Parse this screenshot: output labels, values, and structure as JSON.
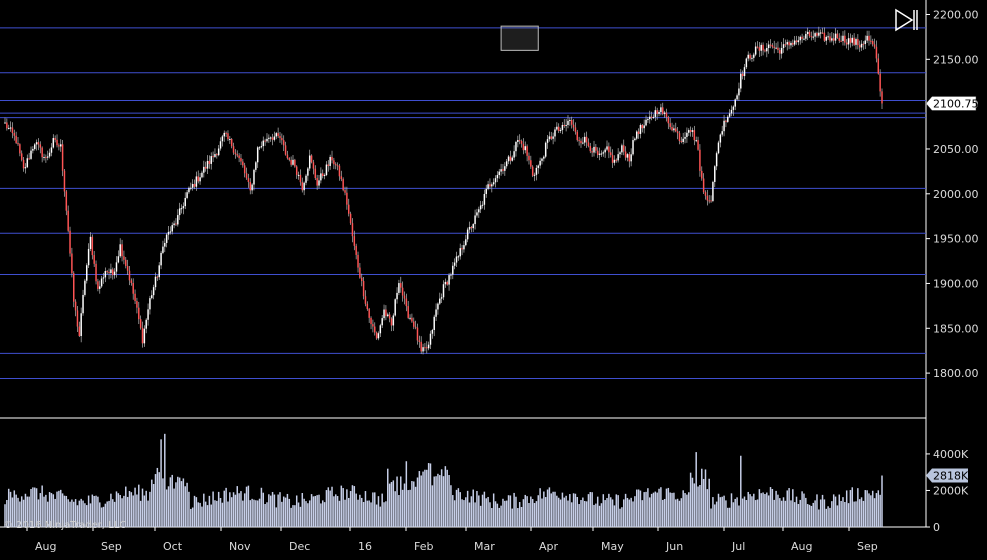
{
  "copyright": "© 2016 NinjaTrader, LLC",
  "colors": {
    "background": "#000000",
    "up_candle": "#ffffff",
    "down_candle": "#ff5555",
    "wick": "#bbbbbb",
    "level_line": "#3f4fd0",
    "volume_bar": "#c7cfe8",
    "axis": "#ffffff",
    "price_badge_bg": "#ffffff",
    "volume_badge_bg": "#b9c5dd"
  },
  "icons": {
    "jump_to_end": "play-to-end-icon"
  },
  "chart_data": [
    {
      "type": "candlestick",
      "panel": "price",
      "y_ticks": [
        "2200.00",
        "2150.00",
        "2100.00",
        "2050.00",
        "2000.00",
        "1950.00",
        "1900.00",
        "1850.00",
        "1800.00"
      ],
      "ylim": [
        1770,
        2205
      ],
      "x_ticks": [
        "Aug",
        "Sep",
        "Oct",
        "Nov",
        "Dec",
        "16",
        "Feb",
        "Mar",
        "Apr",
        "May",
        "Jun",
        "Jul",
        "Aug",
        "Sep"
      ],
      "last_price_label": "2100.75",
      "last_price": 2100.75,
      "horizontal_levels": [
        2185,
        2135,
        2104,
        2090,
        2085,
        2006,
        1956,
        1910,
        1822,
        1794
      ],
      "highlight_box": {
        "x_start_index": 267,
        "x_end_index": 287,
        "y_low": 2160,
        "y_high": 2187
      },
      "path_anchors": [
        [
          0,
          2078
        ],
        [
          6,
          2060
        ],
        [
          10,
          2026
        ],
        [
          16,
          2058
        ],
        [
          22,
          2038
        ],
        [
          26,
          2058
        ],
        [
          30,
          2052
        ],
        [
          34,
          1960
        ],
        [
          37,
          1880
        ],
        [
          40,
          1842
        ],
        [
          43,
          1905
        ],
        [
          46,
          1950
        ],
        [
          50,
          1892
        ],
        [
          54,
          1915
        ],
        [
          58,
          1910
        ],
        [
          62,
          1942
        ],
        [
          66,
          1915
        ],
        [
          70,
          1880
        ],
        [
          74,
          1838
        ],
        [
          78,
          1882
        ],
        [
          82,
          1910
        ],
        [
          86,
          1950
        ],
        [
          92,
          1968
        ],
        [
          98,
          2000
        ],
        [
          102,
          2012
        ],
        [
          108,
          2030
        ],
        [
          114,
          2048
        ],
        [
          118,
          2065
        ],
        [
          122,
          2055
        ],
        [
          128,
          2030
        ],
        [
          132,
          2002
        ],
        [
          136,
          2050
        ],
        [
          142,
          2065
        ],
        [
          148,
          2062
        ],
        [
          152,
          2040
        ],
        [
          156,
          2032
        ],
        [
          160,
          2008
        ],
        [
          164,
          2040
        ],
        [
          168,
          2012
        ],
        [
          172,
          2025
        ],
        [
          176,
          2040
        ],
        [
          180,
          2022
        ],
        [
          184,
          1990
        ],
        [
          188,
          1940
        ],
        [
          192,
          1900
        ],
        [
          196,
          1862
        ],
        [
          200,
          1838
        ],
        [
          204,
          1870
        ],
        [
          208,
          1852
        ],
        [
          212,
          1905
        ],
        [
          216,
          1870
        ],
        [
          220,
          1855
        ],
        [
          224,
          1822
        ],
        [
          228,
          1830
        ],
        [
          232,
          1870
        ],
        [
          236,
          1895
        ],
        [
          240,
          1912
        ],
        [
          244,
          1930
        ],
        [
          248,
          1952
        ],
        [
          252,
          1968
        ],
        [
          256,
          1985
        ],
        [
          260,
          2008
        ],
        [
          264,
          2020
        ],
        [
          268,
          2030
        ],
        [
          272,
          2040
        ],
        [
          276,
          2060
        ],
        [
          280,
          2050
        ],
        [
          284,
          2022
        ],
        [
          288,
          2034
        ],
        [
          292,
          2058
        ],
        [
          296,
          2070
        ],
        [
          300,
          2072
        ],
        [
          304,
          2082
        ],
        [
          308,
          2062
        ],
        [
          312,
          2060
        ],
        [
          316,
          2050
        ],
        [
          320,
          2040
        ],
        [
          324,
          2048
        ],
        [
          328,
          2035
        ],
        [
          332,
          2050
        ],
        [
          336,
          2040
        ],
        [
          340,
          2070
        ],
        [
          344,
          2075
        ],
        [
          348,
          2086
        ],
        [
          352,
          2096
        ],
        [
          356,
          2084
        ],
        [
          360,
          2072
        ],
        [
          364,
          2060
        ],
        [
          368,
          2075
        ],
        [
          372,
          2060
        ],
        [
          376,
          2000
        ],
        [
          380,
          1995
        ],
        [
          384,
          2060
        ],
        [
          388,
          2085
        ],
        [
          392,
          2098
        ],
        [
          396,
          2130
        ],
        [
          400,
          2152
        ],
        [
          404,
          2160
        ],
        [
          408,
          2162
        ],
        [
          412,
          2166
        ],
        [
          416,
          2160
        ],
        [
          420,
          2164
        ],
        [
          424,
          2170
        ],
        [
          428,
          2172
        ],
        [
          432,
          2176
        ],
        [
          436,
          2176
        ],
        [
          440,
          2175
        ],
        [
          444,
          2173
        ],
        [
          448,
          2176
        ],
        [
          452,
          2172
        ],
        [
          456,
          2170
        ],
        [
          460,
          2166
        ],
        [
          464,
          2174
        ],
        [
          468,
          2162
        ],
        [
          472,
          2100.75
        ]
      ],
      "n_candles": 473
    },
    {
      "type": "bar",
      "panel": "volume",
      "y_ticks": [
        "4000K",
        "2000K",
        "0"
      ],
      "ylim": [
        0,
        5200
      ],
      "last_volume_label": "2818K",
      "last_volume": 2818,
      "unit": "K",
      "spikes": [
        [
          84,
          4800
        ],
        [
          86,
          5100
        ],
        [
          216,
          3600
        ],
        [
          228,
          3500
        ],
        [
          372,
          4100
        ],
        [
          396,
          3900
        ],
        [
          472,
          2818
        ]
      ],
      "base_level": 1500
    }
  ]
}
